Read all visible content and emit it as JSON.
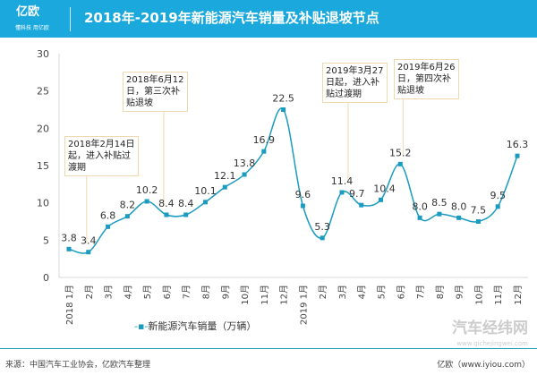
{
  "header": {
    "logo": "亿欧",
    "logo_sub": "懂科技 用亿欧",
    "title": "2018年-2019年新能源汽车销量及补贴退坡节点"
  },
  "chart_data": {
    "type": "line",
    "title": "2018年-2019年新能源汽车销量及补贴退坡节点",
    "categories": [
      "2018 1月",
      "2月",
      "3月",
      "4月",
      "5月",
      "6月",
      "7月",
      "8月",
      "9月",
      "10月",
      "11月",
      "12月",
      "2019 1月",
      "2月",
      "3月",
      "4月",
      "5月",
      "6月",
      "7月",
      "8月",
      "9月",
      "10月",
      "11月",
      "12月"
    ],
    "series": [
      {
        "name": "新能源汽车销量（万辆）",
        "values": [
          3.8,
          3.4,
          6.8,
          8.2,
          10.2,
          8.4,
          8.4,
          10.1,
          12.1,
          13.8,
          16.9,
          22.5,
          9.6,
          5.3,
          11.4,
          9.7,
          10.4,
          15.2,
          8.0,
          8.5,
          8.0,
          7.5,
          9.5,
          16.3
        ],
        "color": "#1a9bc0"
      }
    ],
    "ylim": [
      0,
      30
    ],
    "yticks": [
      0,
      5,
      10,
      15,
      20,
      25,
      30
    ],
    "grid": false,
    "legend": "bottom",
    "annotations": [
      {
        "text": "2018年2月14日\n起，进入补贴过\n渡期",
        "at": 1
      },
      {
        "text": "2018年6月12\n日，第三次补\n贴退坡",
        "at": 5
      },
      {
        "text": "2019年3月27\n日起，进入补\n贴过渡期",
        "at": 14
      },
      {
        "text": "2019年6月26\n日，第四次补\n贴退坡",
        "at": 17
      }
    ]
  },
  "footer": {
    "source": "来源：中国汽车工业协会，亿欧汽车整理",
    "credit": "亿欧（www.iyiou.com）",
    "watermark": "汽车经纬网",
    "watermark_url": "www.qichejingwei.com"
  }
}
